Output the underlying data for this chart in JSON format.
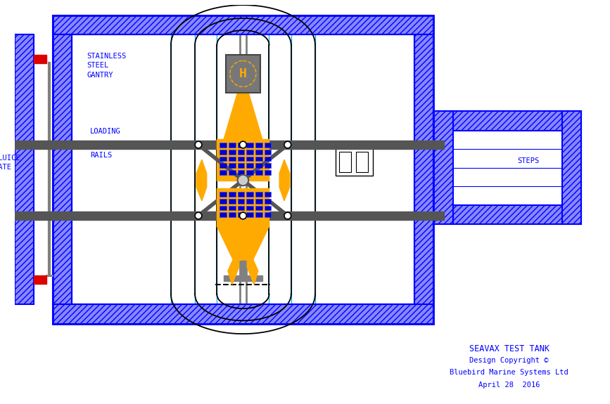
{
  "bg_color": "#ffffff",
  "blue": "#0000ff",
  "gray": "#808080",
  "dark_gray": "#555555",
  "yellow": "#ffaa00",
  "blue_solar": "#0000cc",
  "red": "#dd0000",
  "black": "#000000",
  "cyan": "#00aaff",
  "title_lines": [
    "SEAVAX TEST TANK",
    "Design Copyright ©",
    "Bluebird Marine Systems Ltd",
    "April 28  2016"
  ],
  "label_sluice": "SLUICE\nGATE",
  "label_stainless": "STAINLESS\nSTEEL\nGANTRY",
  "label_loading": "LOADING",
  "label_rails": "RAILS",
  "label_steps": "STEPS"
}
